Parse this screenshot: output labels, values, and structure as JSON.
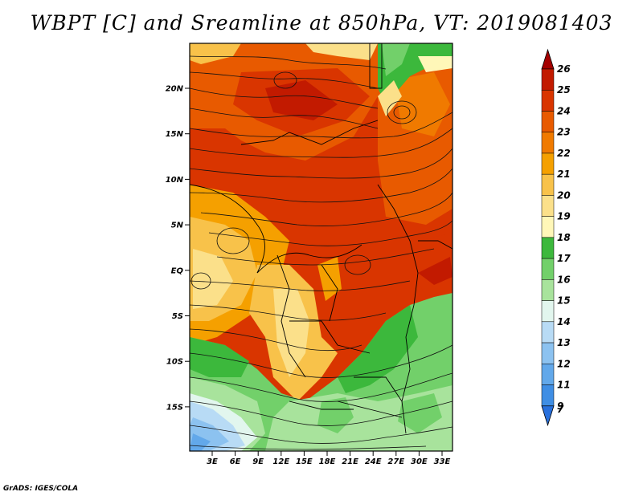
{
  "title": "WBPT [C] and Sreamline at 850hPa, VT: 2019081403",
  "credit": "GrADS: IGES/COLA",
  "map": {
    "lat_labels": [
      "20N",
      "15N",
      "10N",
      "5N",
      "EQ",
      "5S",
      "10S",
      "15S"
    ],
    "lon_labels": [
      "3E",
      "6E",
      "9E",
      "12E",
      "15E",
      "18E",
      "21E",
      "24E",
      "27E",
      "30E",
      "33E"
    ]
  },
  "colorbar": {
    "labels": [
      "26",
      "25",
      "24",
      "23",
      "22",
      "21",
      "20",
      "19",
      "18",
      "17",
      "16",
      "15",
      "14",
      "13",
      "12",
      "11",
      "9",
      "7"
    ],
    "colors": [
      "#a50000",
      "#c21a00",
      "#d93500",
      "#e85a00",
      "#f07a00",
      "#f5a000",
      "#f8c24a",
      "#fbe08a",
      "#fff7b8",
      "#3cb83c",
      "#72d06a",
      "#a8e39c",
      "#e2f6ee",
      "#b8dbf5",
      "#8cc2f0",
      "#62a8ea",
      "#3f8ee4",
      "#2870dc"
    ]
  }
}
